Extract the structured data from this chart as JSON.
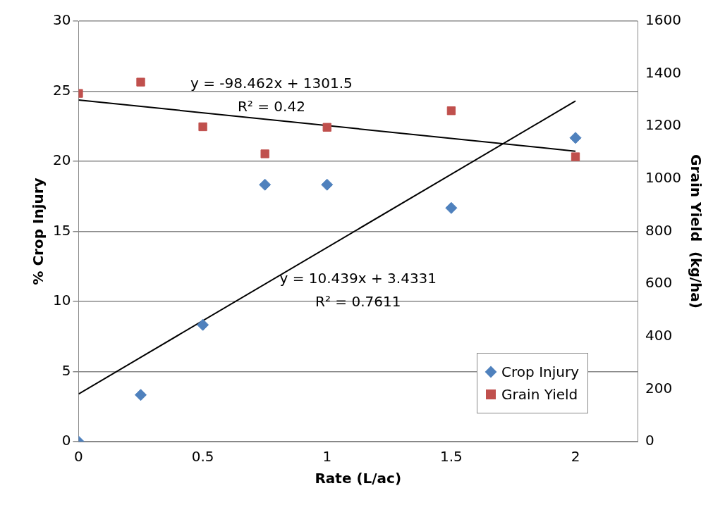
{
  "chart_data": {
    "type": "scatter",
    "xlabel": "Rate (L/ac)",
    "ylabel": "% Crop Injury",
    "y2label": "Grain Yield  (kg/ha)",
    "x": [
      0,
      0.25,
      0.5,
      0.75,
      1,
      1.5,
      2
    ],
    "series": [
      {
        "name": "Crop Injury",
        "color": "#4f81bd",
        "marker": "diamond",
        "values": [
          0,
          3.33,
          8.33,
          18.33,
          18.33,
          16.67,
          21.67
        ]
      },
      {
        "name": "Grain Yield",
        "color": "#c0504d",
        "marker": "square",
        "axis": "y2",
        "values": [
          1325,
          1368,
          1198,
          1095,
          1196,
          1259,
          1084
        ]
      },
      {
        "type": "line",
        "color": "#000000",
        "marker": "none",
        "values": [
          3.4,
          null,
          null,
          null,
          null,
          null,
          24.3
        ]
      },
      {
        "type": "line",
        "color": "#000000",
        "marker": "none",
        "axis": "y2",
        "values": [
          1300,
          null,
          null,
          null,
          null,
          null,
          1105
        ]
      }
    ],
    "xlim": [
      0,
      2.25
    ],
    "xticks": [
      0,
      0.5,
      1,
      1.5,
      2
    ],
    "ylim": [
      0,
      30
    ],
    "yticks": [
      0,
      5,
      10,
      15,
      20,
      25,
      30
    ],
    "y2lim": [
      0,
      1600
    ],
    "y2ticks": [
      0,
      200,
      400,
      600,
      800,
      1000,
      1200,
      1400,
      1600
    ],
    "grid": "y",
    "legend": "bottom right",
    "annotations": [
      "y = -98.462x + 1301.5",
      "R² = 0.42",
      "y = 10.439x + 3.4331",
      "R² = 0.7611"
    ]
  }
}
